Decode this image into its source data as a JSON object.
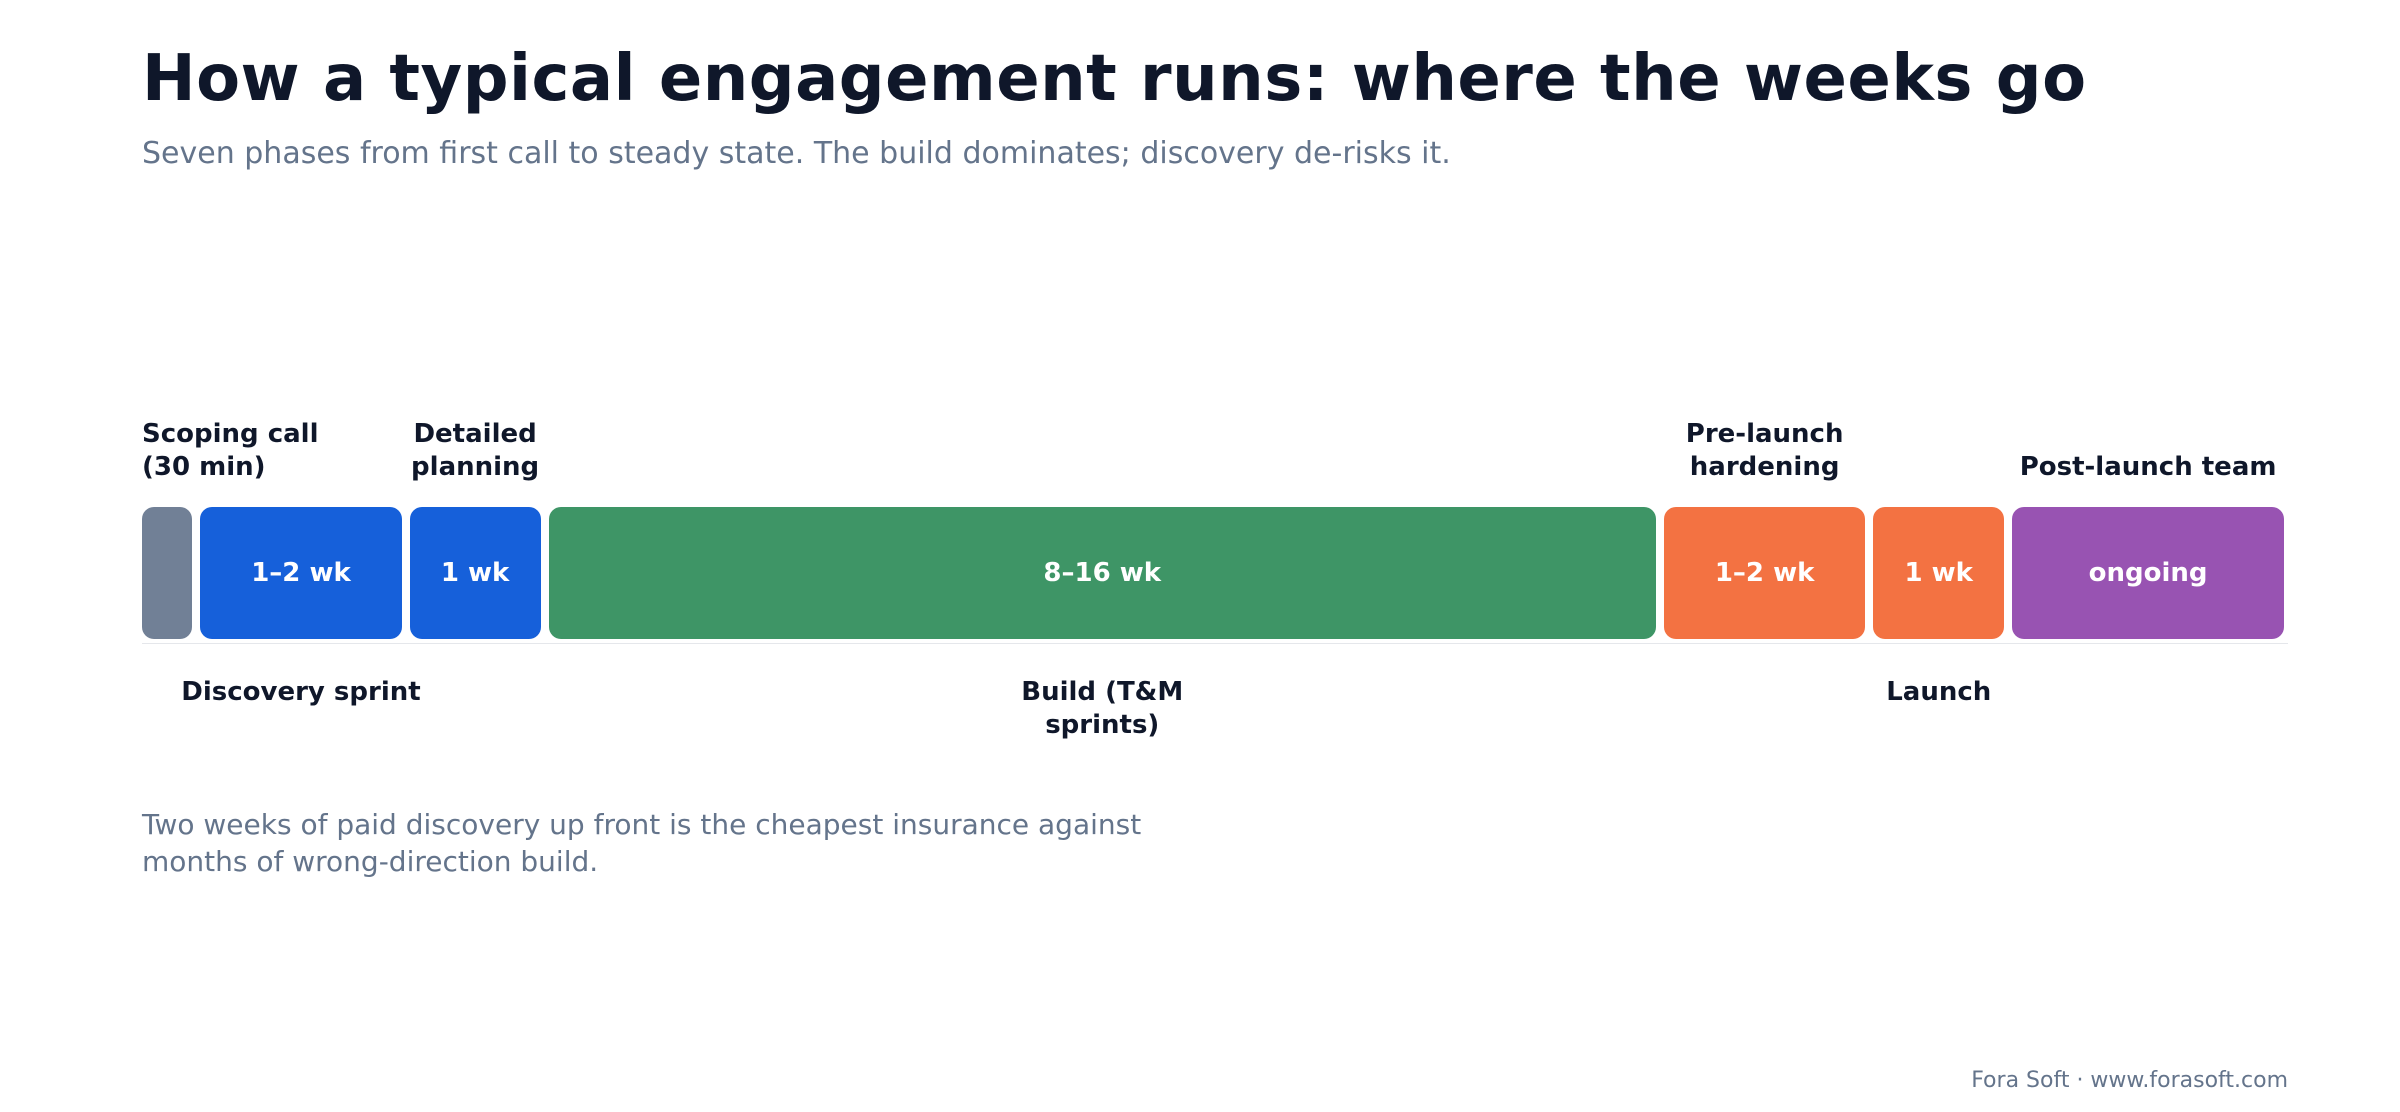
{
  "header": {
    "title": "How a typical engagement runs: where the weeks go",
    "subtitle": "Seven phases from first call to steady state. The build dominates; discovery de-risks it."
  },
  "chart_data": {
    "type": "bar",
    "orientation": "horizontal-timeline",
    "title": "How a typical engagement runs: where the weeks go",
    "subtitle": "Seven phases from first call to steady state. The build dominates; discovery de-risks it.",
    "phases": [
      {
        "label": "Scoping call (30 min)",
        "duration": "",
        "color": "#718096",
        "label_position": "top",
        "relative_width": 0.5
      },
      {
        "label": "Discovery sprint",
        "duration": "1–2 wk",
        "color": "#1660DA",
        "label_position": "bottom",
        "relative_width": 2
      },
      {
        "label": "Detailed planning",
        "duration": "1 wk",
        "color": "#1660DA",
        "label_position": "top",
        "relative_width": 1.3
      },
      {
        "label": "Build (T&M sprints)",
        "duration": "8–16 wk",
        "color": "#3E9566",
        "label_position": "bottom",
        "relative_width": 11
      },
      {
        "label": "Pre-launch hardening",
        "duration": "1–2 wk",
        "color": "#F37242",
        "label_position": "top",
        "relative_width": 2
      },
      {
        "label": "Launch",
        "duration": "1 wk",
        "color": "#F37242",
        "label_position": "bottom",
        "relative_width": 1.3
      },
      {
        "label": "Post-launch team",
        "duration": "ongoing",
        "color": "#9853B2",
        "label_position": "top",
        "relative_width": 2.7
      }
    ]
  },
  "note": "Two weeks of paid discovery up front is the cheapest insurance against months of wrong-direction build.",
  "footer": "Fora Soft · www.forasoft.com"
}
